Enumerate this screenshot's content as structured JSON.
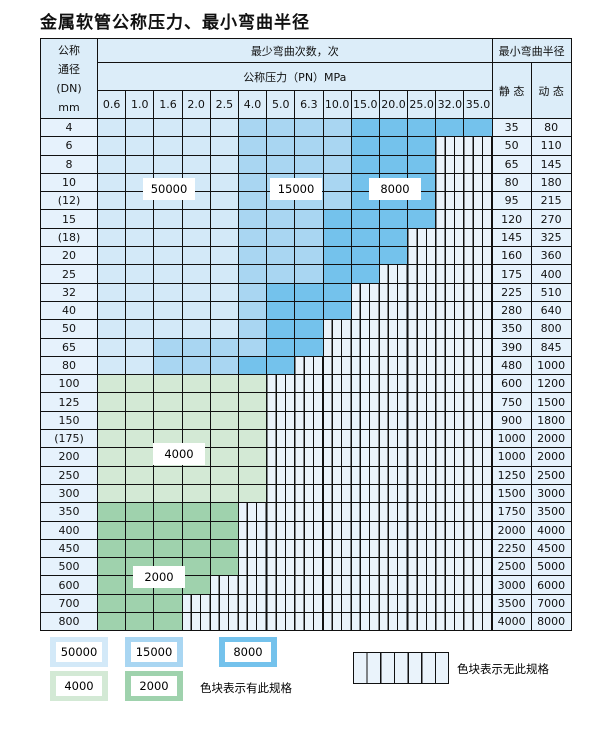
{
  "title": "金属软管公称压力、最小弯曲半径",
  "header": {
    "dn_label": [
      "公称",
      "通径",
      "(DN)",
      "mm"
    ],
    "cycles_label": "最少弯曲次数，次",
    "pressure_label": "公称压力（PN）MPa",
    "radius_label": "最小弯曲半径",
    "static_label": "静 态",
    "dynamic_label": "动 态",
    "pressures": [
      "0.6",
      "1.0",
      "1.6",
      "2.0",
      "2.5",
      "4.0",
      "5.0",
      "6.3",
      "10.0",
      "15.0",
      "20.0",
      "25.0",
      "32.0",
      "35.0"
    ]
  },
  "colors": {
    "a": "#d3e9f8",
    "b": "#a9d6f2",
    "c": "#74c2ec",
    "d": "#d3e9d5",
    "e": "#9fd2ad"
  },
  "rows": [
    {
      "dn": "4",
      "static": "35",
      "dynamic": "80",
      "fill": "aaaaabbbbccccc"
    },
    {
      "dn": "6",
      "static": "50",
      "dynamic": "110",
      "fill": "aaaaabbbbccc"
    },
    {
      "dn": "8",
      "static": "65",
      "dynamic": "145",
      "fill": "aaaaabbbbccc"
    },
    {
      "dn": "10",
      "static": "80",
      "dynamic": "180",
      "fill": "aaaaabbbbccc"
    },
    {
      "dn": "(12)",
      "static": "95",
      "dynamic": "215",
      "fill": "aaaaabbbbccc"
    },
    {
      "dn": "15",
      "static": "120",
      "dynamic": "270",
      "fill": "aaaaabbbcccc"
    },
    {
      "dn": "(18)",
      "static": "145",
      "dynamic": "325",
      "fill": "aaaaabbbccc"
    },
    {
      "dn": "20",
      "static": "160",
      "dynamic": "360",
      "fill": "aaaaabbbccc"
    },
    {
      "dn": "25",
      "static": "175",
      "dynamic": "400",
      "fill": "aaaaabbbcc"
    },
    {
      "dn": "32",
      "static": "225",
      "dynamic": "510",
      "fill": "aaaaabccc"
    },
    {
      "dn": "40",
      "static": "280",
      "dynamic": "640",
      "fill": "aaaaabccc"
    },
    {
      "dn": "50",
      "static": "350",
      "dynamic": "800",
      "fill": "aaaaabcc"
    },
    {
      "dn": "65",
      "static": "390",
      "dynamic": "845",
      "fill": "aabbbbcc"
    },
    {
      "dn": "80",
      "static": "480",
      "dynamic": "1000",
      "fill": "aabbbcc"
    },
    {
      "dn": "100",
      "static": "600",
      "dynamic": "1200",
      "fill": "dddddd"
    },
    {
      "dn": "125",
      "static": "750",
      "dynamic": "1500",
      "fill": "dddddd"
    },
    {
      "dn": "150",
      "static": "900",
      "dynamic": "1800",
      "fill": "dddddd"
    },
    {
      "dn": "(175)",
      "static": "1000",
      "dynamic": "2000",
      "fill": "dddddd"
    },
    {
      "dn": "200",
      "static": "1000",
      "dynamic": "2000",
      "fill": "dddddd"
    },
    {
      "dn": "250",
      "static": "1250",
      "dynamic": "2500",
      "fill": "dddddd"
    },
    {
      "dn": "300",
      "static": "1500",
      "dynamic": "3000",
      "fill": "dddddd"
    },
    {
      "dn": "350",
      "static": "1750",
      "dynamic": "3500",
      "fill": "eeeee"
    },
    {
      "dn": "400",
      "static": "2000",
      "dynamic": "4000",
      "fill": "eeeee"
    },
    {
      "dn": "450",
      "static": "2250",
      "dynamic": "4500",
      "fill": "eeeee"
    },
    {
      "dn": "500",
      "static": "2500",
      "dynamic": "5000",
      "fill": "eeeee"
    },
    {
      "dn": "600",
      "static": "3000",
      "dynamic": "6000",
      "fill": "eeee"
    },
    {
      "dn": "700",
      "static": "3500",
      "dynamic": "7000",
      "fill": "eee"
    },
    {
      "dn": "800",
      "static": "4000",
      "dynamic": "8000",
      "fill": "eee"
    }
  ],
  "region_labels": {
    "a": "50000",
    "b": "15000",
    "c": "8000",
    "d": "4000",
    "e": "2000"
  },
  "legend": {
    "items": [
      {
        "key": "a",
        "label": "50000"
      },
      {
        "key": "b",
        "label": "15000"
      },
      {
        "key": "c",
        "label": "8000"
      },
      {
        "key": "d",
        "label": "4000"
      },
      {
        "key": "e",
        "label": "2000"
      }
    ],
    "has_spec_note": "色块表示有此规格",
    "no_spec_note": "色块表示无此规格"
  }
}
